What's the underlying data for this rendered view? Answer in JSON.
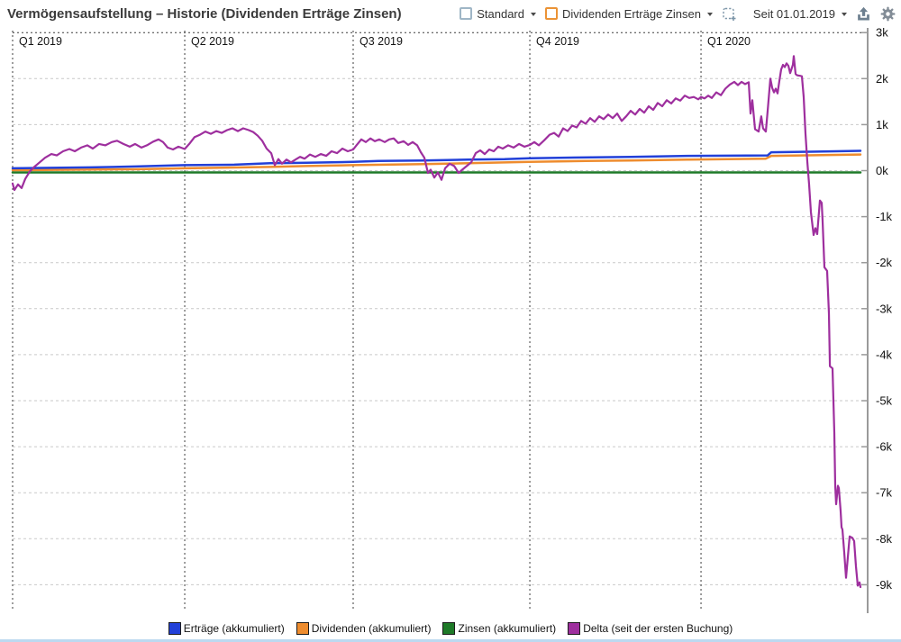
{
  "header": {
    "title": "Vermögensaufstellung – Historie (Dividenden Erträge Zinsen)",
    "view_dropdown": "Standard",
    "chart_dropdown": "Dividenden Erträge Zinsen",
    "period_dropdown": "Seit 01.01.2019",
    "icons": {
      "view": "blue-outline-square-icon",
      "chart": "orange-outline-square-icon",
      "new_view": "dashed-square-plus-icon",
      "export": "export-up-arrow-icon",
      "settings": "gear-icon"
    }
  },
  "colors": {
    "bottom_bar": "#bcd9f0",
    "grid_light": "#c9c9c9",
    "grid_dark": "#3c3c3c",
    "axis": "#9a9a9a"
  },
  "chart_data": {
    "type": "line",
    "title": "Vermögensaufstellung – Historie (Dividenden Erträge Zinsen)",
    "x_axis": {
      "labels": [
        "Q1 2019",
        "Q2 2019",
        "Q3 2019",
        "Q4 2019",
        "Q1 2020"
      ],
      "positions": [
        0.0,
        0.2013,
        0.3983,
        0.6049,
        0.8051
      ],
      "grid": "dashed-vertical"
    },
    "y_axis": {
      "side": "right",
      "unit": "k",
      "ticks": [
        3,
        2,
        1,
        0,
        -1,
        -2,
        -3,
        -4,
        -5,
        -6,
        -7,
        -8,
        -9
      ],
      "labels": [
        "3k",
        "2k",
        "1k",
        "0k",
        "-1k",
        "-2k",
        "-3k",
        "-4k",
        "-5k",
        "-6k",
        "-7k",
        "-8k",
        "-9k"
      ],
      "range": [
        3,
        -9.4
      ]
    },
    "legend_position": "bottom-center",
    "series": [
      {
        "id": "ertraege",
        "name": "Erträge (akkumuliert)",
        "color": "#2240d8",
        "width": 2.5,
        "points": [
          [
            0.0,
            0.05
          ],
          [
            0.0906,
            0.07
          ],
          [
            0.1433,
            0.09
          ],
          [
            0.2013,
            0.12
          ],
          [
            0.2592,
            0.13
          ],
          [
            0.3014,
            0.16
          ],
          [
            0.3435,
            0.17
          ],
          [
            0.3983,
            0.19
          ],
          [
            0.4278,
            0.21
          ],
          [
            0.4805,
            0.22
          ],
          [
            0.5332,
            0.24
          ],
          [
            0.5753,
            0.25
          ],
          [
            0.6049,
            0.27
          ],
          [
            0.6386,
            0.28
          ],
          [
            0.7229,
            0.3
          ],
          [
            0.7892,
            0.32
          ],
          [
            0.883,
            0.33
          ],
          [
            0.8872,
            0.4
          ],
          [
            0.9336,
            0.41
          ],
          [
            0.9916,
            0.43
          ]
        ]
      },
      {
        "id": "dividenden",
        "name": "Dividenden (akkumuliert)",
        "color": "#ee8c2e",
        "width": 2.5,
        "points": [
          [
            0.0,
            0.01
          ],
          [
            0.1433,
            0.03
          ],
          [
            0.2013,
            0.05
          ],
          [
            0.3014,
            0.08
          ],
          [
            0.3435,
            0.1
          ],
          [
            0.3983,
            0.12
          ],
          [
            0.4805,
            0.14
          ],
          [
            0.5332,
            0.16
          ],
          [
            0.6049,
            0.19
          ],
          [
            0.6702,
            0.21
          ],
          [
            0.7229,
            0.22
          ],
          [
            0.7914,
            0.24
          ],
          [
            0.8809,
            0.26
          ],
          [
            0.8872,
            0.32
          ],
          [
            0.9547,
            0.34
          ],
          [
            0.9916,
            0.35
          ]
        ]
      },
      {
        "id": "zinsen",
        "name": "Zinsen (akkumuliert)",
        "color": "#1e7a28",
        "width": 2.5,
        "points": [
          [
            0.0,
            -0.04
          ],
          [
            0.9916,
            -0.04
          ]
        ]
      },
      {
        "id": "delta",
        "name": "Delta (seit der ersten Buchung)",
        "color": "#9e2f9e",
        "width": 2.2,
        "points": [
          [
            0.0,
            -0.28
          ],
          [
            0.0021,
            -0.42
          ],
          [
            0.0063,
            -0.3
          ],
          [
            0.0105,
            -0.38
          ],
          [
            0.0148,
            -0.18
          ],
          [
            0.02,
            -0.02
          ],
          [
            0.0253,
            0.08
          ],
          [
            0.0316,
            0.18
          ],
          [
            0.0379,
            0.28
          ],
          [
            0.0453,
            0.36
          ],
          [
            0.0516,
            0.33
          ],
          [
            0.059,
            0.42
          ],
          [
            0.0664,
            0.47
          ],
          [
            0.0727,
            0.42
          ],
          [
            0.0801,
            0.5
          ],
          [
            0.0875,
            0.55
          ],
          [
            0.0938,
            0.48
          ],
          [
            0.1012,
            0.58
          ],
          [
            0.1085,
            0.55
          ],
          [
            0.1159,
            0.62
          ],
          [
            0.1222,
            0.65
          ],
          [
            0.1296,
            0.58
          ],
          [
            0.137,
            0.52
          ],
          [
            0.1433,
            0.58
          ],
          [
            0.1507,
            0.5
          ],
          [
            0.157,
            0.55
          ],
          [
            0.1644,
            0.63
          ],
          [
            0.1707,
            0.68
          ],
          [
            0.176,
            0.62
          ],
          [
            0.1813,
            0.5
          ],
          [
            0.1876,
            0.46
          ],
          [
            0.1939,
            0.52
          ],
          [
            0.2013,
            0.47
          ],
          [
            0.2065,
            0.58
          ],
          [
            0.2129,
            0.73
          ],
          [
            0.2192,
            0.78
          ],
          [
            0.2255,
            0.85
          ],
          [
            0.2318,
            0.8
          ],
          [
            0.2381,
            0.86
          ],
          [
            0.2445,
            0.82
          ],
          [
            0.2508,
            0.88
          ],
          [
            0.2571,
            0.92
          ],
          [
            0.2634,
            0.86
          ],
          [
            0.2697,
            0.92
          ],
          [
            0.2761,
            0.88
          ],
          [
            0.2813,
            0.84
          ],
          [
            0.2866,
            0.76
          ],
          [
            0.2919,
            0.65
          ],
          [
            0.2971,
            0.48
          ],
          [
            0.3024,
            0.38
          ],
          [
            0.3066,
            0.12
          ],
          [
            0.3109,
            0.25
          ],
          [
            0.3151,
            0.15
          ],
          [
            0.3203,
            0.24
          ],
          [
            0.3256,
            0.18
          ],
          [
            0.3309,
            0.24
          ],
          [
            0.3361,
            0.3
          ],
          [
            0.3414,
            0.26
          ],
          [
            0.3477,
            0.35
          ],
          [
            0.3541,
            0.3
          ],
          [
            0.3604,
            0.36
          ],
          [
            0.3667,
            0.32
          ],
          [
            0.373,
            0.42
          ],
          [
            0.3794,
            0.38
          ],
          [
            0.3857,
            0.48
          ],
          [
            0.392,
            0.42
          ],
          [
            0.3983,
            0.46
          ],
          [
            0.4025,
            0.56
          ],
          [
            0.4078,
            0.68
          ],
          [
            0.4131,
            0.62
          ],
          [
            0.4184,
            0.7
          ],
          [
            0.4236,
            0.64
          ],
          [
            0.4289,
            0.68
          ],
          [
            0.4352,
            0.62
          ],
          [
            0.4405,
            0.68
          ],
          [
            0.4457,
            0.7
          ],
          [
            0.451,
            0.6
          ],
          [
            0.4573,
            0.64
          ],
          [
            0.4626,
            0.56
          ],
          [
            0.4679,
            0.62
          ],
          [
            0.4731,
            0.55
          ],
          [
            0.4774,
            0.4
          ],
          [
            0.4816,
            0.28
          ],
          [
            0.4858,
            -0.05
          ],
          [
            0.4889,
            0.02
          ],
          [
            0.4932,
            -0.15
          ],
          [
            0.4974,
            -0.04
          ],
          [
            0.5016,
            -0.2
          ],
          [
            0.5058,
            0.05
          ],
          [
            0.5111,
            0.15
          ],
          [
            0.5164,
            0.1
          ],
          [
            0.5216,
            -0.05
          ],
          [
            0.5258,
            0.02
          ],
          [
            0.5311,
            0.1
          ],
          [
            0.5364,
            0.18
          ],
          [
            0.5416,
            0.38
          ],
          [
            0.5469,
            0.44
          ],
          [
            0.5522,
            0.36
          ],
          [
            0.5574,
            0.46
          ],
          [
            0.5627,
            0.42
          ],
          [
            0.568,
            0.52
          ],
          [
            0.5732,
            0.48
          ],
          [
            0.5795,
            0.55
          ],
          [
            0.5859,
            0.5
          ],
          [
            0.5922,
            0.58
          ],
          [
            0.5985,
            0.52
          ],
          [
            0.6049,
            0.56
          ],
          [
            0.6101,
            0.62
          ],
          [
            0.6154,
            0.55
          ],
          [
            0.6217,
            0.66
          ],
          [
            0.628,
            0.78
          ],
          [
            0.6333,
            0.82
          ],
          [
            0.6386,
            0.74
          ],
          [
            0.6438,
            0.92
          ],
          [
            0.6491,
            0.86
          ],
          [
            0.6544,
            0.98
          ],
          [
            0.6596,
            0.94
          ],
          [
            0.6649,
            1.08
          ],
          [
            0.6702,
            1.02
          ],
          [
            0.6754,
            1.14
          ],
          [
            0.6807,
            1.06
          ],
          [
            0.686,
            1.18
          ],
          [
            0.6912,
            1.12
          ],
          [
            0.6965,
            1.22
          ],
          [
            0.7018,
            1.14
          ],
          [
            0.7071,
            1.24
          ],
          [
            0.7123,
            1.08
          ],
          [
            0.7176,
            1.18
          ],
          [
            0.7229,
            1.3
          ],
          [
            0.7281,
            1.22
          ],
          [
            0.7334,
            1.34
          ],
          [
            0.7387,
            1.26
          ],
          [
            0.7439,
            1.4
          ],
          [
            0.7492,
            1.32
          ],
          [
            0.7545,
            1.47
          ],
          [
            0.7597,
            1.4
          ],
          [
            0.765,
            1.53
          ],
          [
            0.7703,
            1.46
          ],
          [
            0.7755,
            1.57
          ],
          [
            0.7808,
            1.52
          ],
          [
            0.7861,
            1.63
          ],
          [
            0.7914,
            1.58
          ],
          [
            0.7966,
            1.6
          ],
          [
            0.8019,
            1.55
          ],
          [
            0.8051,
            1.6
          ],
          [
            0.8093,
            1.57
          ],
          [
            0.8135,
            1.63
          ],
          [
            0.8177,
            1.58
          ],
          [
            0.823,
            1.7
          ],
          [
            0.8283,
            1.64
          ],
          [
            0.8335,
            1.78
          ],
          [
            0.8388,
            1.87
          ],
          [
            0.844,
            1.93
          ],
          [
            0.8483,
            1.86
          ],
          [
            0.8525,
            1.93
          ],
          [
            0.8567,
            1.88
          ],
          [
            0.8609,
            1.92
          ],
          [
            0.863,
            1.24
          ],
          [
            0.8651,
            1.53
          ],
          [
            0.8683,
            0.9
          ],
          [
            0.8725,
            0.85
          ],
          [
            0.8756,
            1.18
          ],
          [
            0.8777,
            0.92
          ],
          [
            0.8809,
            0.85
          ],
          [
            0.883,
            1.3
          ],
          [
            0.8862,
            2.0
          ],
          [
            0.8883,
            1.8
          ],
          [
            0.8904,
            1.7
          ],
          [
            0.8925,
            1.78
          ],
          [
            0.8946,
            1.68
          ],
          [
            0.8967,
            1.95
          ],
          [
            0.8988,
            2.2
          ],
          [
            0.901,
            2.3
          ],
          [
            0.9031,
            2.25
          ],
          [
            0.9052,
            2.33
          ],
          [
            0.9073,
            2.28
          ],
          [
            0.9094,
            2.12
          ],
          [
            0.9125,
            2.3
          ],
          [
            0.9136,
            2.49
          ],
          [
            0.9157,
            2.1
          ],
          [
            0.9178,
            2.07
          ],
          [
            0.921,
            2.06
          ],
          [
            0.9231,
            2.05
          ],
          [
            0.9252,
            1.6
          ],
          [
            0.9273,
            0.8
          ],
          [
            0.9294,
            0.2
          ],
          [
            0.9315,
            -0.3
          ],
          [
            0.9336,
            -0.9
          ],
          [
            0.9368,
            -1.4
          ],
          [
            0.9389,
            -1.25
          ],
          [
            0.941,
            -1.38
          ],
          [
            0.9442,
            -0.65
          ],
          [
            0.9463,
            -0.7
          ],
          [
            0.9473,
            -1.1
          ],
          [
            0.9494,
            -2.1
          ],
          [
            0.9526,
            -2.18
          ],
          [
            0.9547,
            -3.1
          ],
          [
            0.9558,
            -4.25
          ],
          [
            0.9589,
            -4.3
          ],
          [
            0.961,
            -5.7
          ],
          [
            0.9621,
            -6.85
          ],
          [
            0.9631,
            -7.25
          ],
          [
            0.9652,
            -6.85
          ],
          [
            0.9663,
            -6.9
          ],
          [
            0.9684,
            -7.4
          ],
          [
            0.9694,
            -7.75
          ],
          [
            0.9705,
            -7.8
          ],
          [
            0.9726,
            -8.3
          ],
          [
            0.9747,
            -8.85
          ],
          [
            0.9768,
            -8.4
          ],
          [
            0.9789,
            -7.95
          ],
          [
            0.9821,
            -7.98
          ],
          [
            0.9842,
            -8.05
          ],
          [
            0.9863,
            -8.6
          ],
          [
            0.9884,
            -9.02
          ],
          [
            0.9905,
            -8.95
          ],
          [
            0.9916,
            -9.05
          ]
        ]
      }
    ]
  }
}
